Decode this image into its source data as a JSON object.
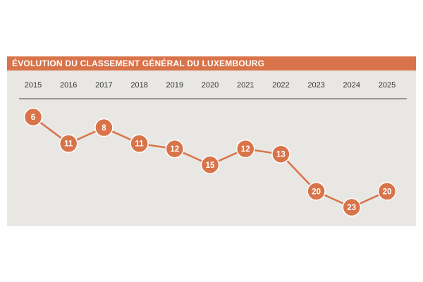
{
  "title": "ÉVOLUTION DU CLASSEMENT GÉNÉRAL DU LUXEMBOURG",
  "colors": {
    "accent": "#d97349",
    "background": "#e8e7e4",
    "axis": "#666666",
    "marker_text": "#ffffff"
  },
  "chart_data": {
    "type": "line",
    "title": "ÉVOLUTION DU CLASSEMENT GÉNÉRAL DU LUXEMBOURG",
    "x": [
      "2015",
      "2016",
      "2017",
      "2018",
      "2019",
      "2020",
      "2021",
      "2022",
      "2023",
      "2024",
      "2025"
    ],
    "series": [
      {
        "values": [
          6,
          11,
          8,
          11,
          12,
          15,
          12,
          13,
          20,
          23,
          20
        ]
      }
    ],
    "y_axis": {
      "inverted": true,
      "visible": false,
      "range": [
        6,
        23
      ]
    },
    "x_axis_position": "top",
    "data_labels": "inside-markers",
    "legend": "none",
    "grid": false
  }
}
